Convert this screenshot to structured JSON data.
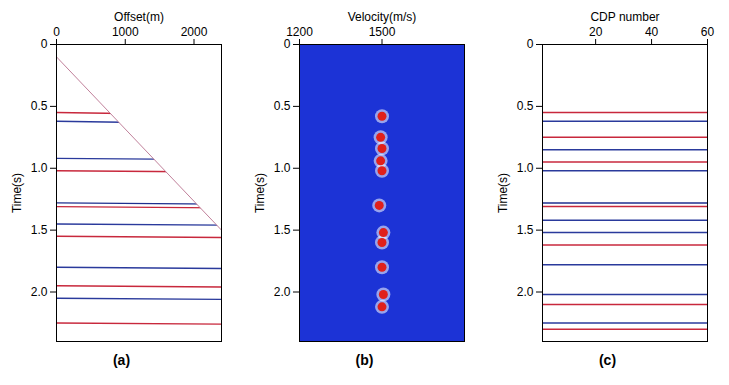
{
  "chart_data": [
    {
      "type": "seismic_gather",
      "panel_label": "(a)",
      "xlabel": "Offset(m)",
      "ylabel": "Time(s)",
      "xlim": [
        0,
        2400
      ],
      "ylim": [
        0,
        2.4
      ],
      "xticks": [
        0,
        1000,
        2000
      ],
      "yticks": [
        0,
        0.5,
        {
          "value": 1,
          "label": "1.0"
        },
        1.5,
        {
          "value": 2,
          "label": "2.0"
        }
      ],
      "first_break": {
        "x": [
          0,
          2400
        ],
        "time": [
          0.1,
          1.5
        ]
      },
      "reflection_x": [
        0,
        2400
      ],
      "reflections": [
        {
          "time": [
            0.55,
            0.57
          ],
          "color": "#c8283c"
        },
        {
          "time": [
            0.62,
            0.64
          ],
          "color": "#2a3a9c"
        },
        {
          "time": [
            0.92,
            0.93
          ],
          "color": "#2a3a9c"
        },
        {
          "time": [
            1.02,
            1.03
          ],
          "color": "#c8283c"
        },
        {
          "time": [
            1.28,
            1.29
          ],
          "color": "#1f2f8f"
        },
        {
          "time": [
            1.31,
            1.32
          ],
          "color": "#c8283c"
        },
        {
          "time": [
            1.45,
            1.46
          ],
          "color": "#2a3a9c"
        },
        {
          "time": [
            1.55,
            1.56
          ],
          "color": "#c8283c"
        },
        {
          "time": [
            1.8,
            1.81
          ],
          "color": "#2a3a9c"
        },
        {
          "time": [
            1.95,
            1.96
          ],
          "color": "#c8283c"
        },
        {
          "time": [
            2.05,
            2.06
          ],
          "color": "#2a3a9c"
        },
        {
          "time": [
            2.25,
            2.26
          ],
          "color": "#c8283c"
        }
      ]
    },
    {
      "type": "velocity_spectrum",
      "panel_label": "(b)",
      "xlabel": "Velocity(m/s)",
      "ylabel": "Time(s)",
      "xlim": [
        1200,
        1800
      ],
      "ylim": [
        0,
        2.4
      ],
      "xticks": [
        1200,
        1500
      ],
      "yticks": [
        0,
        0.5,
        {
          "value": 1,
          "label": "1.0"
        },
        1.5,
        {
          "value": 2,
          "label": "2.0"
        }
      ],
      "color": "#1c33d6",
      "peaks": {
        "velocity": [
          1500,
          1495,
          1500,
          1495,
          1500,
          1490,
          1505,
          1500,
          1500,
          1505,
          1500
        ],
        "time": [
          0.58,
          0.75,
          0.84,
          0.94,
          1.02,
          1.3,
          1.52,
          1.6,
          1.8,
          2.02,
          2.12
        ],
        "color": "#e0201b"
      }
    },
    {
      "type": "stack_section",
      "panel_label": "(c)",
      "xlabel": "CDP number",
      "ylabel": "Time(s)",
      "xlim": [
        1,
        60
      ],
      "ylim": [
        0,
        2.4
      ],
      "xticks": [
        20,
        40,
        60
      ],
      "yticks": [
        0,
        0.5,
        {
          "value": 1,
          "label": "1.0"
        },
        1.5,
        {
          "value": 2,
          "label": "2.0"
        }
      ],
      "reflectors": [
        {
          "time": 0.55,
          "color": "#c8283c"
        },
        {
          "time": 0.62,
          "color": "#2a3a9c"
        },
        {
          "time": 0.75,
          "color": "#c8283c"
        },
        {
          "time": 0.85,
          "color": "#2a3a9c"
        },
        {
          "time": 0.95,
          "color": "#c8283c"
        },
        {
          "time": 1.02,
          "color": "#2a3a9c"
        },
        {
          "time": 1.28,
          "color": "#1f2f8f"
        },
        {
          "time": 1.31,
          "color": "#c8283c"
        },
        {
          "time": 1.42,
          "color": "#2a3a9c"
        },
        {
          "time": 1.52,
          "color": "#2a3a9c"
        },
        {
          "time": 1.62,
          "color": "#c8283c"
        },
        {
          "time": 1.78,
          "color": "#2a3a9c"
        },
        {
          "time": 2.02,
          "color": "#2a3a9c"
        },
        {
          "time": 2.1,
          "color": "#c8283c"
        },
        {
          "time": 2.25,
          "color": "#2a3a9c"
        },
        {
          "time": 2.3,
          "color": "#c8283c"
        }
      ]
    }
  ]
}
